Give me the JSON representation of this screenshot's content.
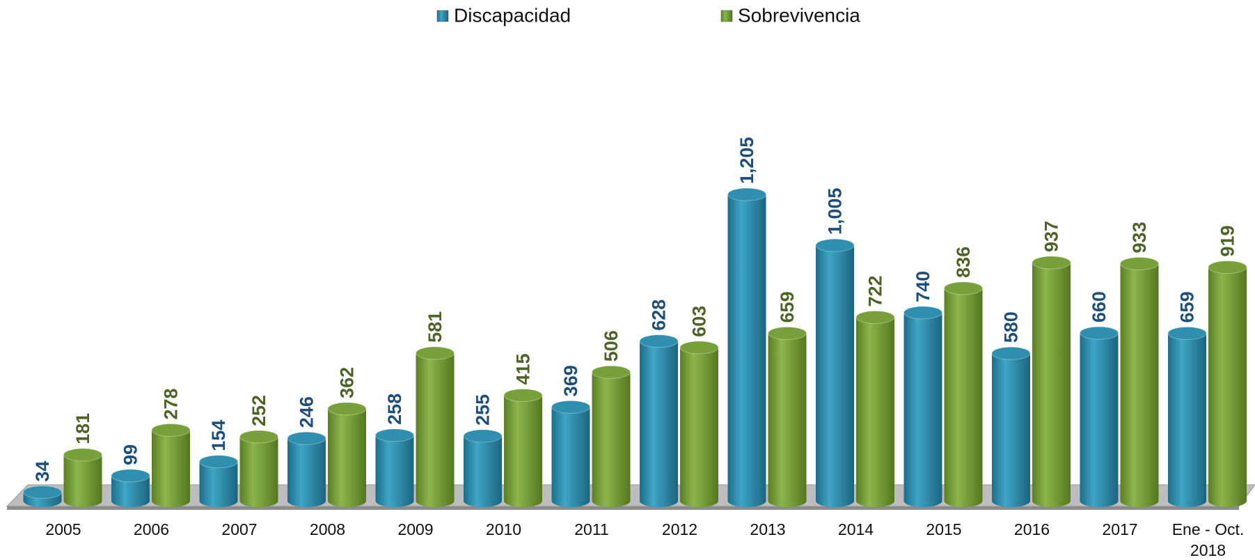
{
  "chart_data": {
    "type": "bar",
    "categories": [
      "2005",
      "2006",
      "2007",
      "2008",
      "2009",
      "2010",
      "2011",
      "2012",
      "2013",
      "2014",
      "2015",
      "2016",
      "2017",
      "Ene - Oct. 2018"
    ],
    "series": [
      {
        "name": "Discapacidad",
        "color": "#2f8fae",
        "label_color": "#1f4e79",
        "values": [
          34,
          99,
          154,
          246,
          258,
          255,
          369,
          628,
          1205,
          1005,
          740,
          580,
          660,
          659
        ],
        "value_labels": [
          "34",
          "99",
          "154",
          "246",
          "258",
          "255",
          "369",
          "628",
          "1,205",
          "1,005",
          "740",
          "580",
          "660",
          "659"
        ]
      },
      {
        "name": "Sobrevivencia",
        "color": "#77a03a",
        "label_color": "#4f6228",
        "values": [
          181,
          278,
          252,
          362,
          581,
          415,
          506,
          603,
          659,
          722,
          836,
          937,
          933,
          919
        ],
        "value_labels": [
          "181",
          "278",
          "252",
          "362",
          "581",
          "415",
          "506",
          "603",
          "659",
          "722",
          "836",
          "937",
          "933",
          "919"
        ]
      }
    ],
    "legend": "top"
  }
}
